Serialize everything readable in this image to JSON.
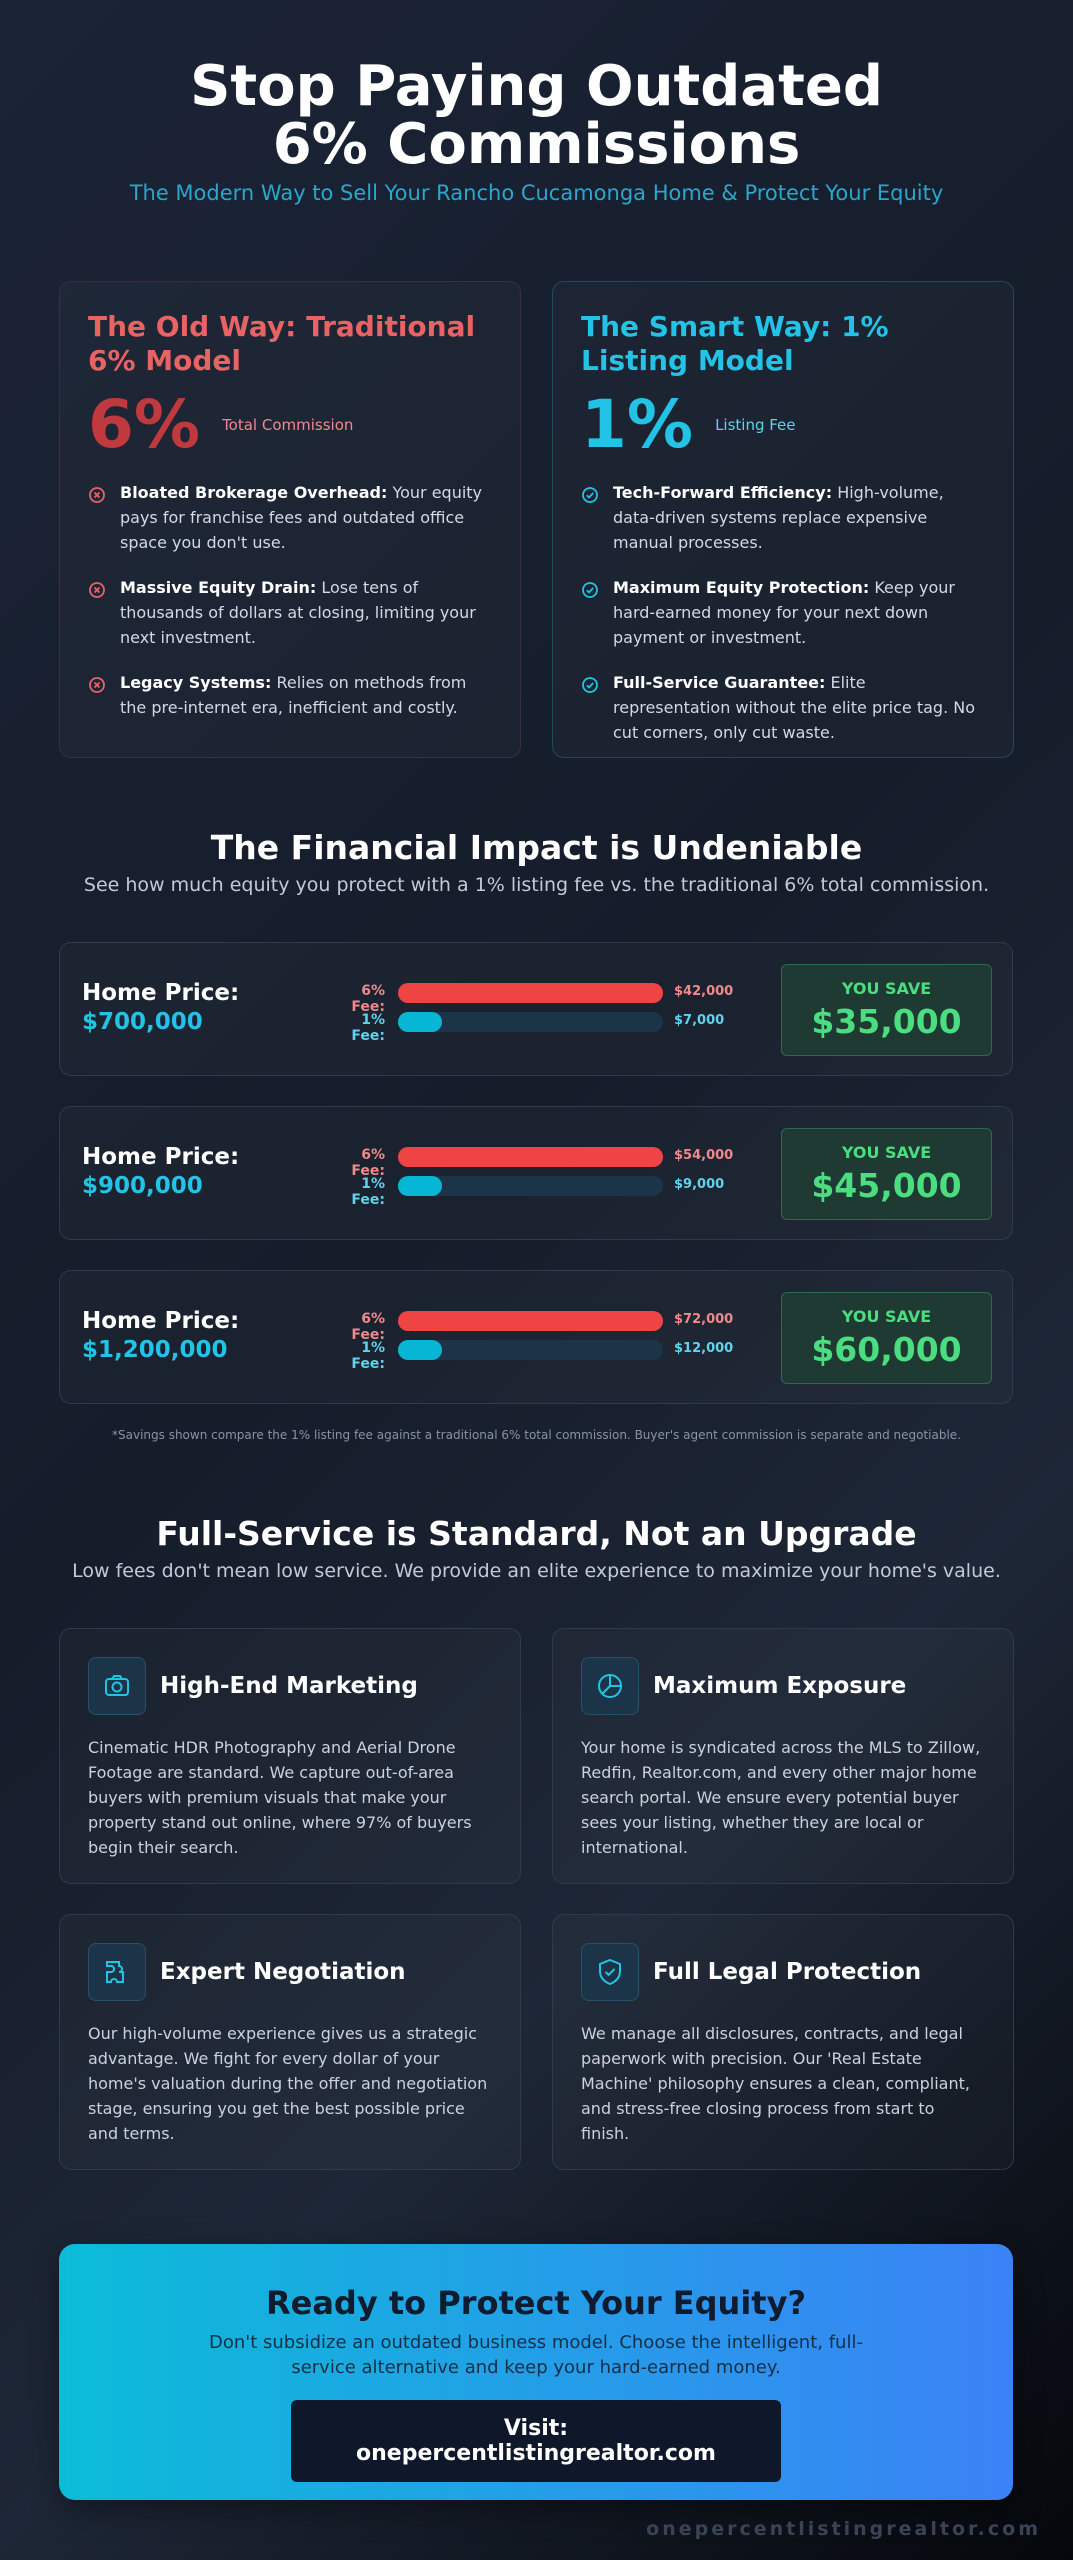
{
  "header": {
    "title": "Stop Paying Outdated 6% Commissions",
    "subtitle": "The Modern Way to Sell Your Rancho Cucamonga Home & Protect Your Equity"
  },
  "comparison": [
    {
      "heading": "The Old Way: Traditional 6% Model",
      "big": "6%",
      "big_label": "Total Commission",
      "points": [
        {
          "bold": "Bloated Brokerage Overhead:",
          "text": "Your equity pays for franchise fees and outdated office space you don't use."
        },
        {
          "bold": "Massive Equity Drain:",
          "text": "Lose tens of thousands of dollars at closing, limiting your next investment."
        },
        {
          "bold": "Legacy Systems:",
          "text": "Relies on methods from the pre-internet era, inefficient and costly."
        }
      ]
    },
    {
      "heading": "The Smart Way: 1% Listing Model",
      "big": "1%",
      "big_label": "Listing Fee",
      "points": [
        {
          "bold": "Tech-Forward Efficiency:",
          "text": "High-volume, data-driven systems replace expensive manual processes."
        },
        {
          "bold": "Maximum Equity Protection:",
          "text": "Keep your hard-earned money for your next down payment or investment."
        },
        {
          "bold": "Full-Service Guarantee:",
          "text": "Elite representation without the elite price tag. No cut corners, only cut waste."
        }
      ]
    }
  ],
  "impact": {
    "title": "The Financial Impact is Undeniable",
    "subtitle": "See how much equity you protect with a 1% listing fee vs. the traditional 6% total commission.",
    "rows": [
      {
        "label": "Home Price:",
        "price": "$700,000",
        "fees": [
          {
            "name": "6% Fee:",
            "value": 42000,
            "label": "$42,000"
          },
          {
            "name": "1% Fee:",
            "value": 7000,
            "label": "$7,000"
          }
        ],
        "save_label": "YOU SAVE",
        "save": "$35,000"
      },
      {
        "label": "Home Price:",
        "price": "$900,000",
        "fees": [
          {
            "name": "6% Fee:",
            "value": 54000,
            "label": "$54,000"
          },
          {
            "name": "1% Fee:",
            "value": 9000,
            "label": "$9,000"
          }
        ],
        "save_label": "YOU SAVE",
        "save": "$45,000"
      },
      {
        "label": "Home Price:",
        "price": "$1,200,000",
        "fees": [
          {
            "name": "6% Fee:",
            "value": 72000,
            "label": "$72,000"
          },
          {
            "name": "1% Fee:",
            "value": 12000,
            "label": "$12,000"
          }
        ],
        "save_label": "YOU SAVE",
        "save": "$60,000"
      }
    ],
    "footnote": "*Savings shown compare the 1% listing fee against a traditional 6% total commission. Buyer's agent commission is separate and negotiable."
  },
  "services": {
    "title": "Full-Service is Standard, Not an Upgrade",
    "subtitle": "Low fees don't mean low service. We provide an elite experience to maximize your home's value.",
    "cards": [
      {
        "title": "High-End Marketing",
        "text": "Cinematic HDR Photography and Aerial Drone Footage are standard. We capture out-of-area buyers with premium visuals that make your property stand out online, where 97% of buyers begin their search."
      },
      {
        "title": "Maximum Exposure",
        "text": "Your home is syndicated across the MLS to Zillow, Redfin, Realtor.com, and every other major home search portal. We ensure every potential buyer sees your listing, whether they are local or international."
      },
      {
        "title": "Expert Negotiation",
        "text": "Our high-volume experience gives us a strategic advantage. We fight for every dollar of your home's valuation during the offer and negotiation stage, ensuring you get the best possible price and terms."
      },
      {
        "title": "Full Legal Protection",
        "text": "We manage all disclosures, contracts, and legal paperwork with precision. Our 'Real Estate Machine' philosophy ensures a clean, compliant, and stress-free closing process from start to finish."
      }
    ]
  },
  "cta": {
    "title": "Ready to Protect Your Equity?",
    "text": "Don't subsidize an outdated business model. Choose the intelligent, full-service alternative and keep your hard-earned money.",
    "button": "Visit: onepercentlistingrealtor.com"
  },
  "footer": "onepercentlistingrealtor.com"
}
